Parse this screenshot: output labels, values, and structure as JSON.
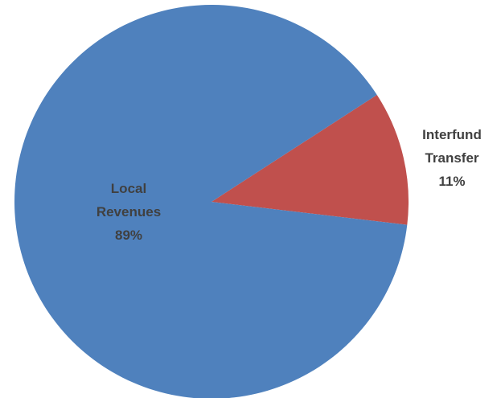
{
  "chart_data": {
    "type": "pie",
    "title": "",
    "slices": [
      {
        "label": "Interfund Transfer",
        "label_lines": [
          "Interfund",
          "Transfer"
        ],
        "value": 11,
        "value_label": "11%",
        "color": "#C0504D"
      },
      {
        "label": "Local Revenues",
        "label_lines": [
          "Local",
          "Revenues"
        ],
        "value": 89,
        "value_label": "89%",
        "color": "#4F81BD"
      }
    ],
    "legend": "none"
  }
}
